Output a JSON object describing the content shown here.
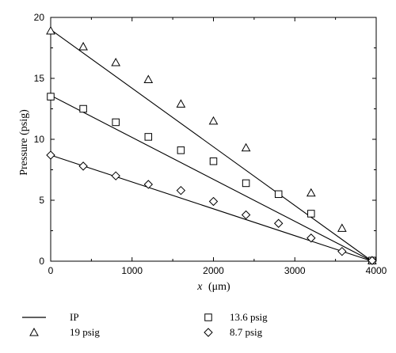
{
  "chart_data": {
    "type": "scatter",
    "xlabel_var": "x",
    "xlabel_unit": "(μm)",
    "ylabel": "Pressure (psig)",
    "xlim": [
      0,
      4000
    ],
    "ylim": [
      0,
      20
    ],
    "xticks": [
      0,
      1000,
      2000,
      3000,
      4000
    ],
    "yticks": [
      0,
      5,
      10,
      15,
      20
    ],
    "grid": false,
    "legend": {
      "placement": "below",
      "entries": [
        "IP",
        "13.6 psig",
        "19 psig",
        "8.7 psig"
      ]
    },
    "lines": [
      {
        "name": "IP",
        "x": [
          0,
          3950
        ],
        "y": [
          19.0,
          0
        ]
      },
      {
        "name": "IP",
        "x": [
          0,
          3950
        ],
        "y": [
          13.6,
          0
        ]
      },
      {
        "name": "IP",
        "x": [
          0,
          3950
        ],
        "y": [
          8.7,
          0
        ]
      }
    ],
    "series": [
      {
        "name": "19 psig",
        "marker": "triangle",
        "x": [
          0,
          400,
          800,
          1200,
          1600,
          2000,
          2400,
          3200,
          3580,
          3950
        ],
        "y": [
          18.9,
          17.6,
          16.3,
          14.9,
          12.9,
          11.5,
          9.3,
          5.6,
          2.7,
          0.05
        ]
      },
      {
        "name": "13.6 psig",
        "marker": "square",
        "x": [
          0,
          400,
          800,
          1200,
          1600,
          2000,
          2400,
          2800,
          3200,
          3950
        ],
        "y": [
          13.5,
          12.5,
          11.4,
          10.2,
          9.1,
          8.2,
          6.4,
          5.5,
          3.9,
          0.05
        ]
      },
      {
        "name": "8.7 psig",
        "marker": "diamond",
        "x": [
          0,
          400,
          800,
          1200,
          1600,
          2000,
          2400,
          2800,
          3200,
          3580,
          3950
        ],
        "y": [
          8.7,
          7.8,
          7.0,
          6.3,
          5.8,
          4.9,
          3.8,
          3.1,
          1.9,
          0.8,
          0.05
        ]
      }
    ]
  }
}
